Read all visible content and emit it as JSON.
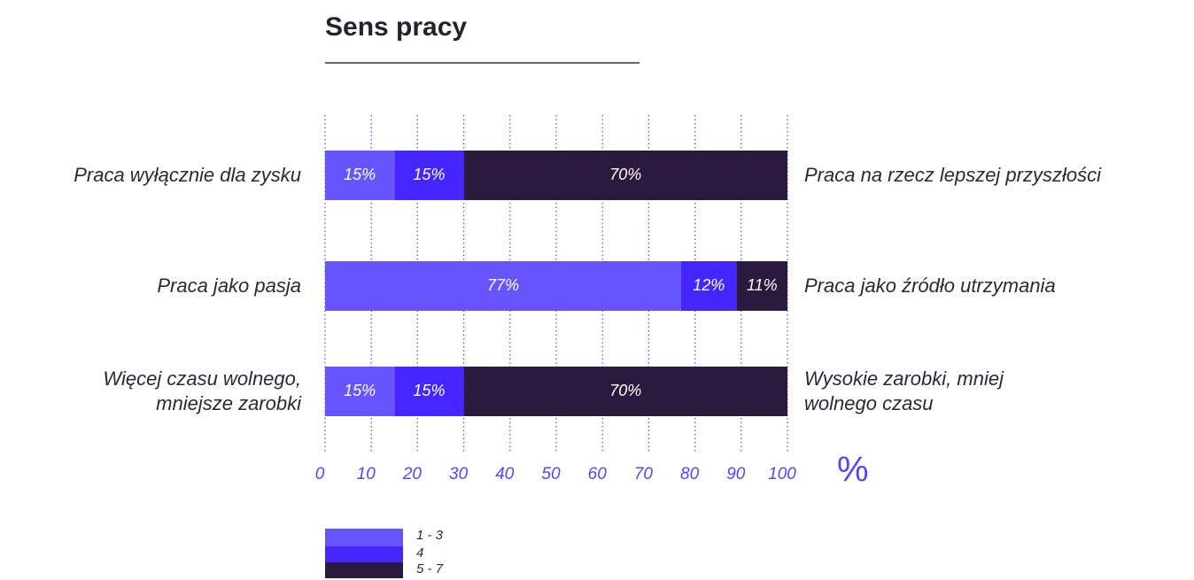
{
  "chart_data": {
    "type": "stacked_barh",
    "title": "Sens pracy",
    "categories": [
      "Praca wyłącznie dla zysku",
      "Praca jako pasja",
      "Więcej czasu wolnego,\nmniejsze zarobki"
    ],
    "right_labels": [
      "Praca na rzecz lepszej przyszłości",
      "Praca jako źródło utrzymania",
      "Wysokie zarobki, mniej\nwolnego czasu"
    ],
    "series": [
      {
        "name": "1 - 3",
        "color": "#6655ff",
        "values": [
          15,
          77,
          15
        ],
        "value_labels": [
          "15%",
          "77%",
          "15%"
        ]
      },
      {
        "name": "4",
        "color": "#4626ff",
        "values": [
          15,
          12,
          15
        ],
        "value_labels": [
          "15%",
          "12%",
          "15%"
        ]
      },
      {
        "name": "5 - 7",
        "color": "#2b1a3d",
        "values": [
          70,
          11,
          70
        ],
        "value_labels": [
          "70%",
          "11%",
          "70%"
        ]
      }
    ],
    "xlim": [
      0,
      100
    ],
    "xticks": [
      0,
      10,
      20,
      30,
      40,
      50,
      60,
      70,
      80,
      90,
      100
    ],
    "xlabel": "%",
    "grid": true
  }
}
